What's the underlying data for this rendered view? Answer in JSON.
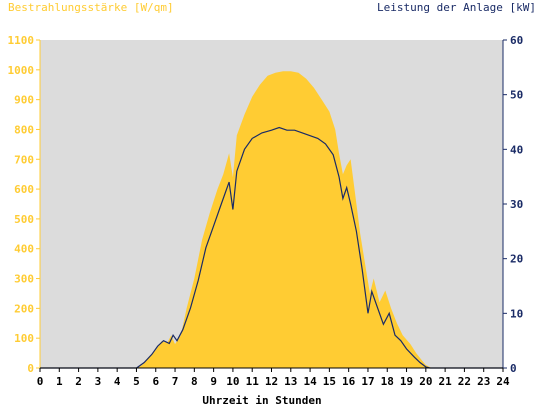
{
  "chart_data": {
    "type": "area",
    "left_axis_label": "Bestrahlungsstärke [W/qm]",
    "right_axis_label": "Leistung der Anlage [kW]",
    "xlabel": "Uhrzeit in Stunden",
    "xlim": [
      0,
      24
    ],
    "x_ticks": [
      "0",
      "1",
      "2",
      "3",
      "4",
      "5",
      "6",
      "7",
      "8",
      "9",
      "10",
      "11",
      "12",
      "13",
      "14",
      "15",
      "16",
      "17",
      "18",
      "19",
      "20",
      "21",
      "22",
      "23",
      "24"
    ],
    "ylim_left": [
      0,
      1100
    ],
    "y_ticks_left": [
      "0",
      "100",
      "200",
      "300",
      "400",
      "500",
      "600",
      "700",
      "800",
      "900",
      "1000",
      "1100"
    ],
    "ylim_right": [
      0,
      60
    ],
    "y_ticks_right": [
      "0",
      "10",
      "20",
      "30",
      "40",
      "50",
      "60"
    ],
    "colors": {
      "irradiance": "#ffcc33",
      "power": "#1a2b66",
      "plot_bg": "#dcdcdc",
      "left_axis": "#ffcc33",
      "right_axis": "#1a2b66"
    },
    "series": [
      {
        "name": "Bestrahlungsstärke [W/qm]",
        "axis": "left",
        "points": [
          [
            0,
            0
          ],
          [
            5,
            0
          ],
          [
            5.3,
            10
          ],
          [
            5.6,
            35
          ],
          [
            6,
            60
          ],
          [
            6.3,
            90
          ],
          [
            6.6,
            85
          ],
          [
            6.8,
            110
          ],
          [
            7,
            80
          ],
          [
            7.3,
            110
          ],
          [
            7.6,
            200
          ],
          [
            8,
            300
          ],
          [
            8.4,
            430
          ],
          [
            8.8,
            520
          ],
          [
            9.2,
            600
          ],
          [
            9.5,
            650
          ],
          [
            9.8,
            720
          ],
          [
            10,
            640
          ],
          [
            10.2,
            780
          ],
          [
            10.6,
            850
          ],
          [
            11,
            910
          ],
          [
            11.4,
            950
          ],
          [
            11.8,
            980
          ],
          [
            12.2,
            990
          ],
          [
            12.6,
            995
          ],
          [
            13,
            995
          ],
          [
            13.4,
            990
          ],
          [
            13.8,
            970
          ],
          [
            14.2,
            940
          ],
          [
            14.6,
            900
          ],
          [
            15,
            860
          ],
          [
            15.3,
            800
          ],
          [
            15.5,
            720
          ],
          [
            15.7,
            650
          ],
          [
            15.9,
            680
          ],
          [
            16.1,
            700
          ],
          [
            16.3,
            600
          ],
          [
            16.6,
            450
          ],
          [
            16.9,
            330
          ],
          [
            17.1,
            250
          ],
          [
            17.3,
            300
          ],
          [
            17.6,
            220
          ],
          [
            17.9,
            260
          ],
          [
            18.2,
            200
          ],
          [
            18.5,
            150
          ],
          [
            18.8,
            110
          ],
          [
            19.2,
            80
          ],
          [
            19.5,
            50
          ],
          [
            19.8,
            25
          ],
          [
            20,
            10
          ],
          [
            20.3,
            0
          ],
          [
            24,
            0
          ]
        ]
      },
      {
        "name": "Leistung der Anlage [kW]",
        "axis": "right",
        "points": [
          [
            0,
            0
          ],
          [
            5,
            0
          ],
          [
            5.4,
            1
          ],
          [
            5.8,
            2.5
          ],
          [
            6.1,
            4
          ],
          [
            6.4,
            5
          ],
          [
            6.7,
            4.5
          ],
          [
            6.9,
            6
          ],
          [
            7.1,
            5
          ],
          [
            7.4,
            7
          ],
          [
            7.8,
            11
          ],
          [
            8.2,
            16
          ],
          [
            8.6,
            22
          ],
          [
            9,
            26
          ],
          [
            9.4,
            30
          ],
          [
            9.8,
            34
          ],
          [
            10,
            29
          ],
          [
            10.2,
            36
          ],
          [
            10.6,
            40
          ],
          [
            11,
            42
          ],
          [
            11.5,
            43
          ],
          [
            12,
            43.5
          ],
          [
            12.4,
            44
          ],
          [
            12.8,
            43.5
          ],
          [
            13.2,
            43.5
          ],
          [
            13.6,
            43
          ],
          [
            14,
            42.5
          ],
          [
            14.4,
            42
          ],
          [
            14.8,
            41
          ],
          [
            15.2,
            39
          ],
          [
            15.5,
            35
          ],
          [
            15.7,
            31
          ],
          [
            15.9,
            33
          ],
          [
            16.1,
            30
          ],
          [
            16.4,
            25
          ],
          [
            16.7,
            18
          ],
          [
            17,
            10
          ],
          [
            17.2,
            14
          ],
          [
            17.5,
            11
          ],
          [
            17.8,
            8
          ],
          [
            18.1,
            10
          ],
          [
            18.4,
            6
          ],
          [
            18.7,
            5
          ],
          [
            19,
            3.5
          ],
          [
            19.4,
            2
          ],
          [
            19.7,
            1
          ],
          [
            20,
            0.2
          ],
          [
            20.2,
            0
          ],
          [
            24,
            0
          ]
        ]
      }
    ]
  }
}
